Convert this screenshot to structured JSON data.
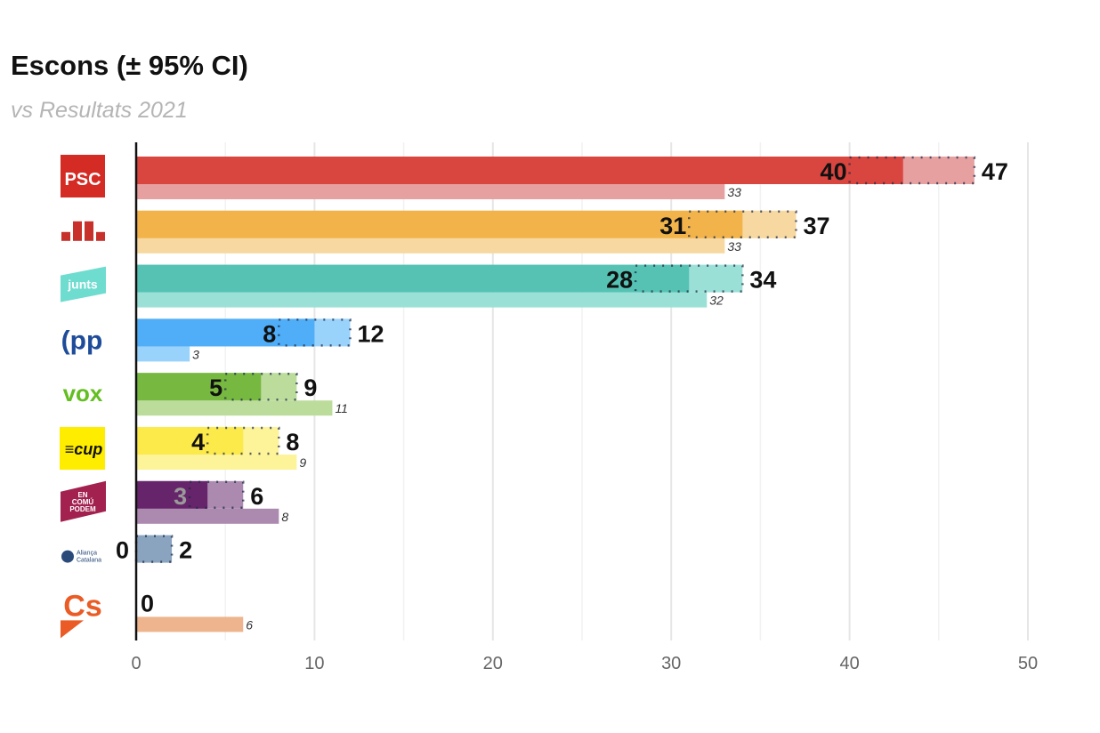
{
  "chart_data": {
    "type": "bar",
    "title": "Escons (± 95% CI)",
    "subtitle": "vs Resultats 2021",
    "xlim": [
      0,
      50
    ],
    "xticks": [
      0,
      10,
      20,
      30,
      40,
      50
    ],
    "grid": true,
    "categories": [
      "PSC",
      "ERC",
      "Junts",
      "PP",
      "VOX",
      "CUP",
      "En Comú Podem",
      "Aliança Catalana",
      "Cs"
    ],
    "series": [
      {
        "name": "estimate",
        "values": [
          43,
          34,
          31,
          10,
          7,
          6,
          4,
          0,
          0
        ]
      },
      {
        "name": "ci_low",
        "values": [
          40,
          31,
          28,
          8,
          5,
          4,
          3,
          0,
          0
        ]
      },
      {
        "name": "ci_high",
        "values": [
          47,
          37,
          34,
          12,
          9,
          8,
          6,
          2,
          0
        ]
      },
      {
        "name": "2021",
        "values": [
          33,
          33,
          32,
          3,
          11,
          9,
          8,
          null,
          6
        ]
      }
    ],
    "colors": [
      "#d9453f",
      "#f2b44a",
      "#55c2b4",
      "#4faef7",
      "#77b840",
      "#fce94a",
      "#66256a",
      "#8aa4bf",
      "#ea6a2e"
    ],
    "light_colors": [
      "#e6a0a0",
      "#f7d8a0",
      "#9be0d6",
      "#99d2fa",
      "#bcdc9c",
      "#fdf399",
      "#ac8ab0",
      "#8aa4bf",
      "#edb48e"
    ]
  }
}
